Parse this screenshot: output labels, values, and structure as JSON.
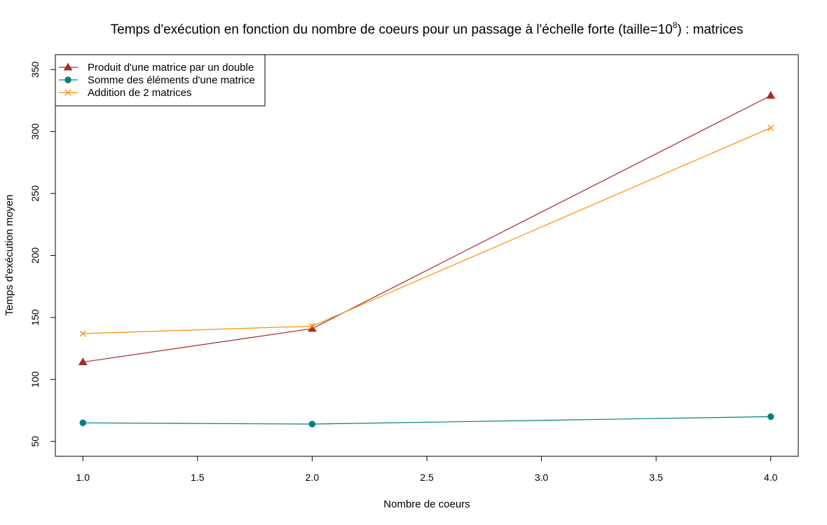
{
  "chart_data": {
    "type": "line",
    "title": "Temps d'exécution en fonction du nombre de coeurs pour un passage à l'échelle forte (taille=10",
    "title_superscript": "8",
    "title_suffix": ") : matrices",
    "xlabel": "Nombre de coeurs",
    "ylabel": "Temps d'exécution moyen",
    "x": [
      1,
      2,
      4
    ],
    "xlim": [
      0.88,
      4.12
    ],
    "ylim": [
      38,
      362
    ],
    "xticks": [
      1.0,
      1.5,
      2.0,
      2.5,
      3.0,
      3.5,
      4.0
    ],
    "xtick_labels": [
      "1.0",
      "1.5",
      "2.0",
      "2.5",
      "3.0",
      "3.5",
      "4.0"
    ],
    "yticks": [
      50,
      100,
      150,
      200,
      250,
      300,
      350
    ],
    "ytick_labels": [
      "50",
      "100",
      "150",
      "200",
      "250",
      "300",
      "350"
    ],
    "grid": false,
    "legend_position": "top-left",
    "series": [
      {
        "name": "Produit d'une matrice par un double",
        "values": [
          114,
          141,
          329
        ],
        "color": "#A52A2A",
        "marker": "triangle"
      },
      {
        "name": "Somme des éléments d'une matrice",
        "values": [
          65,
          64,
          70
        ],
        "color": "#008080",
        "marker": "circle"
      },
      {
        "name": "Addition de 2 matrices",
        "values": [
          137,
          143,
          303
        ],
        "color": "#FF8C00",
        "marker": "cross"
      }
    ]
  }
}
